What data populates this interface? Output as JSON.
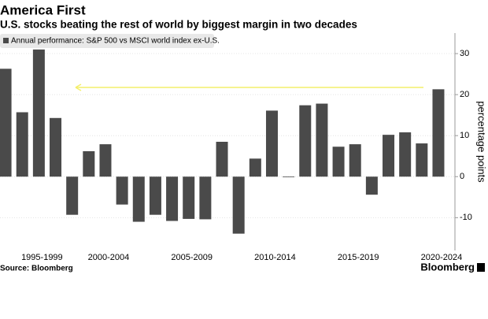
{
  "chart_data": {
    "type": "bar",
    "title": "America First",
    "subtitle": "U.S. stocks beating the rest of world by biggest margin in two decades",
    "legend": "Annual performance: S&P 500 vs MSCI world index ex-U.S.",
    "y_label": "percentage points",
    "source": "Source: Bloomberg",
    "brand": "Bloomberg",
    "categories": [
      null,
      null,
      "1995-1999",
      null,
      null,
      null,
      "2000-2004",
      null,
      null,
      null,
      null,
      "2005-2009",
      null,
      null,
      null,
      null,
      "2010-2014",
      null,
      null,
      null,
      null,
      "2015-2019",
      null,
      null,
      null,
      null,
      "2020-2024"
    ],
    "values": [
      26.3,
      15.7,
      31,
      14.3,
      -9.3,
      6.2,
      7.9,
      -6.8,
      -11,
      -9.3,
      -10.8,
      -10.3,
      -10.4,
      8.5,
      -13.9,
      4.4,
      16.1,
      -0.1,
      17.4,
      17.8,
      7.3,
      7.9,
      -4.4,
      10.2,
      10.8,
      8.1,
      21.3
    ],
    "color": "#4a4a4a",
    "ylim": [
      -18,
      35
    ],
    "yticks": [
      -10,
      0,
      10,
      20,
      30
    ],
    "y_axis_side": "right"
  }
}
